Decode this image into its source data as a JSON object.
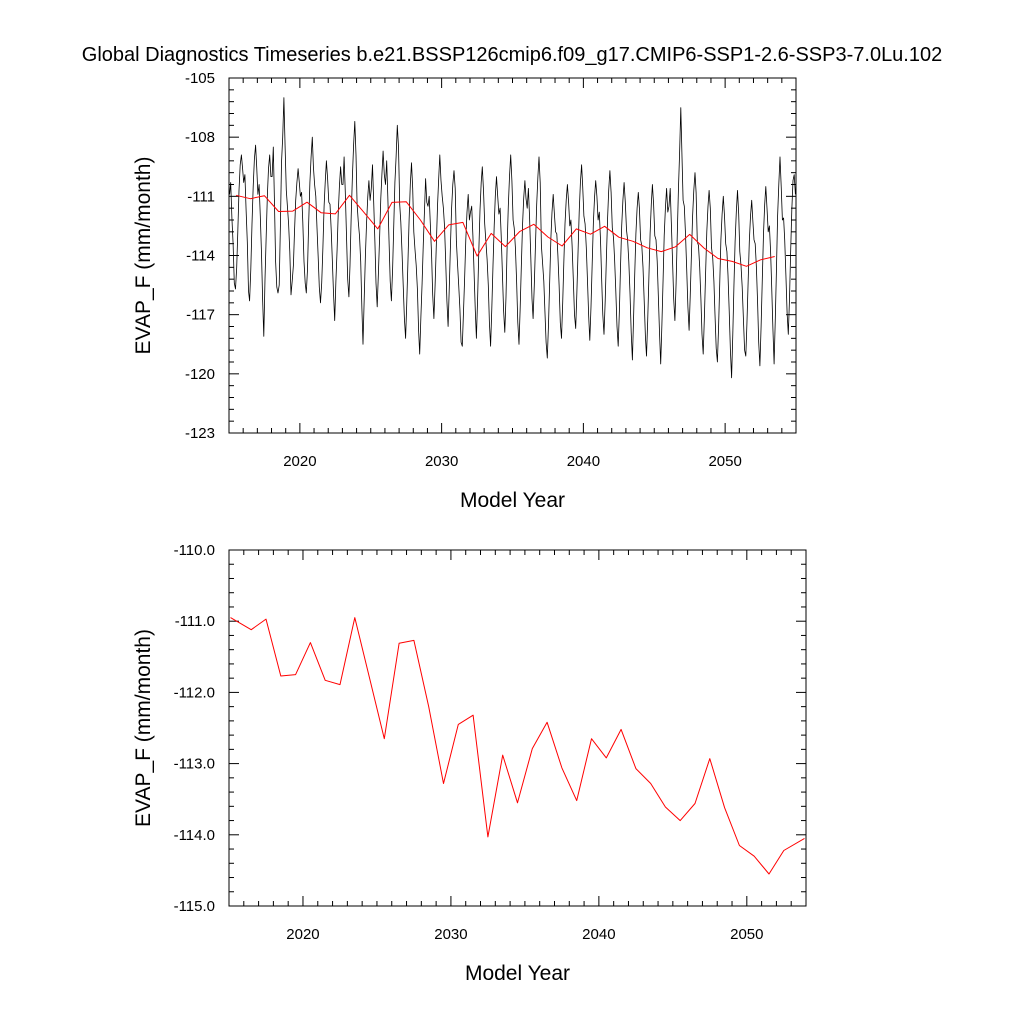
{
  "title": "Global Diagnostics Timeseries b.e21.BSSP126cmip6.f09_g17.CMIP6-SSP1-2.6-SSP3-7.0Lu.102",
  "colors": {
    "monthly": "#000000",
    "annual": "#ff0000",
    "frame": "#000000"
  },
  "chart_data": [
    {
      "type": "line",
      "xlabel": "Model Year",
      "ylabel": "EVAP_F (mm/month)",
      "xlim": [
        2015,
        2055
      ],
      "ylim": [
        -123,
        -105
      ],
      "xticks": [
        2020,
        2030,
        2040,
        2050
      ],
      "yticks": [
        -123,
        -120,
        -117,
        -114,
        -111,
        -108,
        -105
      ],
      "ytick_labels": [
        "-123",
        "-120",
        "-117",
        "-114",
        "-111",
        "-108",
        "-105"
      ],
      "series": [
        {
          "key": "monthly",
          "color": "#000000",
          "x_start": 2015.04,
          "x_step": 0.08333,
          "values": [
            -110.9,
            -110.3,
            -112.1,
            -113.4,
            -115.4,
            -115.7,
            -114.6,
            -112.8,
            -110.7,
            -109.4,
            -108.9,
            -109.6,
            -110.3,
            -109.9,
            -111.7,
            -113.3,
            -115.8,
            -116.3,
            -114.7,
            -112.4,
            -110.5,
            -109.1,
            -108.4,
            -109.5,
            -110.9,
            -110.4,
            -112.0,
            -113.9,
            -116.2,
            -118.1,
            -115.2,
            -113.0,
            -110.9,
            -109.6,
            -108.9,
            -110.0,
            -110.0,
            -108.5,
            -111.4,
            -114.3,
            -115.6,
            -115.9,
            -115.5,
            -112.5,
            -109.3,
            -108.0,
            -106.0,
            -108.5,
            -110.7,
            -111.5,
            -112.4,
            -113.8,
            -116.0,
            -115.3,
            -114.5,
            -112.8,
            -111.2,
            -110.3,
            -109.6,
            -110.3,
            -111.0,
            -110.8,
            -112.3,
            -114.3,
            -115.4,
            -115.9,
            -114.7,
            -112.3,
            -110.3,
            -109.0,
            -108.0,
            -109.5,
            -110.4,
            -111.0,
            -112.6,
            -114.1,
            -115.6,
            -116.4,
            -115.4,
            -113.6,
            -111.5,
            -110.3,
            -109.2,
            -110.1,
            -111.3,
            -111.4,
            -112.7,
            -114.2,
            -115.9,
            -117.3,
            -115.3,
            -113.7,
            -111.9,
            -110.5,
            -109.5,
            -110.4,
            -110.4,
            -109.0,
            -110.8,
            -113.0,
            -115.2,
            -116.1,
            -114.5,
            -112.0,
            -110.0,
            -108.4,
            -107.2,
            -108.9,
            -111.4,
            -112.3,
            -113.0,
            -114.3,
            -116.7,
            -118.5,
            -116.2,
            -114.0,
            -112.3,
            -111.0,
            -110.2,
            -111.2,
            -110.6,
            -109.4,
            -111.3,
            -113.3,
            -115.4,
            -116.6,
            -114.9,
            -113.1,
            -111.1,
            -109.9,
            -108.7,
            -109.9,
            -110.4,
            -109.2,
            -111.0,
            -113.2,
            -115.3,
            -116.3,
            -114.7,
            -112.4,
            -110.3,
            -109.0,
            -107.4,
            -108.5,
            -111.4,
            -112.3,
            -113.8,
            -115.5,
            -117.2,
            -118.2,
            -116.5,
            -114.4,
            -112.2,
            -110.4,
            -109.3,
            -110.6,
            -112.8,
            -113.7,
            -114.5,
            -115.7,
            -117.8,
            -119.0,
            -117.1,
            -115.4,
            -113.4,
            -111.7,
            -110.1,
            -111.3,
            -111.5,
            -111.0,
            -112.5,
            -114.0,
            -116.0,
            -117.2,
            -115.5,
            -113.5,
            -111.5,
            -110.2,
            -108.9,
            -110.2,
            -111.0,
            -111.6,
            -112.5,
            -114.3,
            -116.3,
            -117.6,
            -115.6,
            -113.4,
            -111.6,
            -110.4,
            -109.7,
            -110.6,
            -113.3,
            -114.4,
            -115.5,
            -116.7,
            -118.4,
            -118.6,
            -117.0,
            -115.2,
            -113.2,
            -111.8,
            -110.9,
            -112.2,
            -111.8,
            -111.5,
            -113.0,
            -114.9,
            -116.8,
            -118.2,
            -116.2,
            -113.8,
            -111.7,
            -110.3,
            -109.5,
            -110.7,
            -112.4,
            -113.3,
            -114.2,
            -115.5,
            -117.4,
            -118.6,
            -116.7,
            -114.5,
            -112.5,
            -111.0,
            -110.0,
            -111.0,
            -111.9,
            -111.6,
            -113.0,
            -114.9,
            -116.8,
            -117.9,
            -116.1,
            -113.6,
            -111.5,
            -110.0,
            -108.9,
            -110.2,
            -112.2,
            -112.6,
            -113.6,
            -115.3,
            -117.4,
            -118.5,
            -116.8,
            -114.6,
            -112.5,
            -111.1,
            -110.2,
            -111.1,
            -111.6,
            -110.6,
            -112.1,
            -114.1,
            -116.2,
            -117.2,
            -115.5,
            -113.4,
            -111.4,
            -110.0,
            -109.0,
            -110.3,
            -113.5,
            -114.4,
            -115.3,
            -116.8,
            -118.4,
            -119.2,
            -117.5,
            -115.3,
            -113.1,
            -111.8,
            -110.9,
            -111.9,
            -112.8,
            -112.9,
            -114.0,
            -115.5,
            -117.4,
            -118.2,
            -116.4,
            -114.4,
            -112.4,
            -111.2,
            -110.4,
            -111.3,
            -112.5,
            -112.2,
            -113.5,
            -115.2,
            -117.0,
            -117.7,
            -116.0,
            -113.9,
            -111.8,
            -110.3,
            -109.4,
            -110.5,
            -112.0,
            -112.4,
            -113.6,
            -115.3,
            -117.1,
            -118.3,
            -116.6,
            -114.4,
            -112.3,
            -111.0,
            -110.2,
            -111.0,
            -112.2,
            -111.8,
            -113.2,
            -115.1,
            -117.0,
            -118.0,
            -116.3,
            -114.1,
            -112.1,
            -110.7,
            -109.7,
            -110.8,
            -112.6,
            -113.1,
            -114.2,
            -115.8,
            -117.6,
            -118.6,
            -116.8,
            -114.6,
            -112.5,
            -111.2,
            -110.3,
            -111.3,
            -112.7,
            -113.2,
            -114.3,
            -115.9,
            -117.9,
            -119.3,
            -117.3,
            -115.0,
            -112.9,
            -111.6,
            -110.8,
            -111.6,
            -113.2,
            -113.5,
            -114.6,
            -116.3,
            -118.1,
            -119.1,
            -117.3,
            -115.1,
            -112.9,
            -111.4,
            -110.4,
            -111.4,
            -113.0,
            -113.2,
            -114.3,
            -116.0,
            -117.9,
            -119.5,
            -117.5,
            -115.2,
            -113.0,
            -111.6,
            -110.6,
            -111.8,
            -111.5,
            -110.6,
            -112.3,
            -114.2,
            -116.2,
            -117.3,
            -115.4,
            -113.1,
            -110.7,
            -108.8,
            -106.5,
            -109.0,
            -111.2,
            -111.5,
            -112.9,
            -114.7,
            -116.6,
            -117.8,
            -116.1,
            -114.0,
            -112.0,
            -110.7,
            -109.8,
            -110.8,
            -113.3,
            -113.5,
            -114.6,
            -116.2,
            -118.0,
            -119.0,
            -117.1,
            -114.9,
            -112.8,
            -111.5,
            -110.7,
            -111.6,
            -113.6,
            -114.1,
            -115.3,
            -117.0,
            -118.7,
            -119.4,
            -117.6,
            -115.3,
            -113.2,
            -111.9,
            -111.0,
            -112.0,
            -113.4,
            -113.8,
            -115.0,
            -116.8,
            -118.8,
            -120.2,
            -118.0,
            -115.6,
            -113.3,
            -111.8,
            -110.7,
            -111.9,
            -113.8,
            -114.5,
            -115.6,
            -117.2,
            -118.8,
            -119.1,
            -117.5,
            -115.4,
            -113.3,
            -112.0,
            -111.2,
            -112.2,
            -113.2,
            -113.4,
            -114.6,
            -116.4,
            -118.4,
            -119.6,
            -117.6,
            -115.2,
            -112.9,
            -111.4,
            -110.5,
            -111.6,
            -112.8,
            -112.5,
            -113.8,
            -115.6,
            -117.7,
            -119.5,
            -117.2,
            -114.6,
            -112.0,
            -110.4,
            -109.0,
            -110.5,
            -112.2,
            -112.1,
            -113.2,
            -115.0,
            -116.9,
            -118.0,
            -116.2,
            -113.9,
            -111.7,
            -110.2,
            -109.9,
            -110.9
          ]
        },
        {
          "key": "annual",
          "color": "#ff0000",
          "x": [
            2015.5,
            2016.5,
            2017.5,
            2018.5,
            2019.5,
            2020.5,
            2021.5,
            2022.5,
            2023.5,
            2024.5,
            2025.5,
            2026.5,
            2027.5,
            2028.5,
            2029.5,
            2030.5,
            2031.5,
            2032.5,
            2033.5,
            2034.5,
            2035.5,
            2036.5,
            2037.5,
            2038.5,
            2039.5,
            2040.5,
            2041.5,
            2042.5,
            2043.5,
            2044.5,
            2045.5,
            2046.5,
            2047.5,
            2048.5,
            2049.5,
            2050.5,
            2051.5,
            2052.5,
            2053.5
          ],
          "values": [
            -110.95,
            -111.12,
            -110.97,
            -111.77,
            -111.75,
            -111.3,
            -111.83,
            -111.89,
            -110.95,
            -111.8,
            -112.65,
            -111.31,
            -111.27,
            -112.2,
            -113.28,
            -112.45,
            -112.32,
            -114.03,
            -112.88,
            -113.55,
            -112.79,
            -112.42,
            -113.06,
            -113.52,
            -112.65,
            -112.92,
            -112.52,
            -113.07,
            -113.28,
            -113.61,
            -113.8,
            -113.56,
            -112.93,
            -113.62,
            -114.15,
            -114.3,
            -114.55,
            -114.22,
            -114.05
          ]
        }
      ]
    },
    {
      "type": "line",
      "xlabel": "Model Year",
      "ylabel": "EVAP_F (mm/month)",
      "xlim": [
        2015,
        2054
      ],
      "ylim": [
        -115,
        -110
      ],
      "xticks": [
        2020,
        2030,
        2040,
        2050
      ],
      "yticks": [
        -115,
        -114,
        -113,
        -112,
        -111,
        -110
      ],
      "ytick_labels": [
        "-115.0",
        "-114.0",
        "-113.0",
        "-112.0",
        "-111.0",
        "-110.0"
      ],
      "series": [
        {
          "key": "annual",
          "color": "#ff0000",
          "x": [
            2015.1,
            2016.5,
            2017.5,
            2018.5,
            2019.5,
            2020.5,
            2021.5,
            2022.5,
            2023.5,
            2024.5,
            2025.5,
            2026.5,
            2027.5,
            2028.5,
            2029.5,
            2030.5,
            2031.5,
            2032.5,
            2033.5,
            2034.5,
            2035.5,
            2036.5,
            2037.5,
            2038.5,
            2039.5,
            2040.5,
            2041.5,
            2042.5,
            2043.5,
            2044.5,
            2045.5,
            2046.5,
            2047.5,
            2048.5,
            2049.5,
            2050.5,
            2051.5,
            2052.5,
            2053.9
          ],
          "values": [
            -110.95,
            -111.12,
            -110.97,
            -111.77,
            -111.75,
            -111.3,
            -111.83,
            -111.89,
            -110.95,
            -111.8,
            -112.65,
            -111.31,
            -111.27,
            -112.2,
            -113.28,
            -112.45,
            -112.32,
            -114.03,
            -112.88,
            -113.55,
            -112.79,
            -112.42,
            -113.06,
            -113.52,
            -112.65,
            -112.92,
            -112.52,
            -113.07,
            -113.28,
            -113.61,
            -113.8,
            -113.56,
            -112.93,
            -113.62,
            -114.15,
            -114.3,
            -114.55,
            -114.22,
            -114.05
          ]
        }
      ]
    }
  ]
}
